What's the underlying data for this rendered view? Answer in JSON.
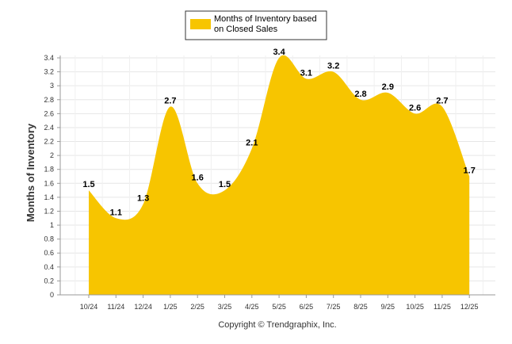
{
  "chart_data": {
    "type": "area",
    "title": "",
    "xlabel": "",
    "ylabel": "Months of Inventory",
    "legend": [
      "Months of Inventory based",
      "on Closed Sales"
    ],
    "legend_position": "top-center",
    "categories": [
      "10/24",
      "11/24",
      "12/24",
      "1/25",
      "2/25",
      "3/25",
      "4/25",
      "5/25",
      "6/25",
      "7/25",
      "8/25",
      "9/25",
      "10/25",
      "11/25",
      "12/25"
    ],
    "series": [
      {
        "name": "Months of Inventory based on Closed Sales",
        "values": [
          1.5,
          1.1,
          1.3,
          2.7,
          1.6,
          1.5,
          2.1,
          3.4,
          3.1,
          3.2,
          2.8,
          2.9,
          2.6,
          2.7,
          1.7
        ],
        "labels": [
          "1.5",
          "1.1",
          "1.3",
          "2.7",
          "1.6",
          "1.5",
          "2.1",
          "3.4",
          "3.1",
          "3.2",
          "2.8",
          "2.9",
          "2.6",
          "2.7",
          "1.7"
        ]
      }
    ],
    "ylim": [
      0,
      3.4
    ],
    "yticks": [
      0,
      0.2,
      0.4,
      0.6,
      0.8,
      1,
      1.2,
      1.4,
      1.6,
      1.8,
      2,
      2.2,
      2.4,
      2.6,
      2.8,
      3,
      3.2,
      3.4
    ],
    "ytick_labels": [
      "0",
      "0.2",
      "0.4",
      "0.6",
      "0.8",
      "1",
      "1.2",
      "1.4",
      "1.6",
      "1.8",
      "2",
      "2.2",
      "2.4",
      "2.6",
      "2.8",
      "3",
      "3.2",
      "3.4"
    ],
    "grid": true,
    "colors": {
      "area": "#F7C500",
      "grid": "#e6e6e6",
      "axis": "#999999"
    }
  },
  "footer": "Copyright © Trendgraphix, Inc."
}
